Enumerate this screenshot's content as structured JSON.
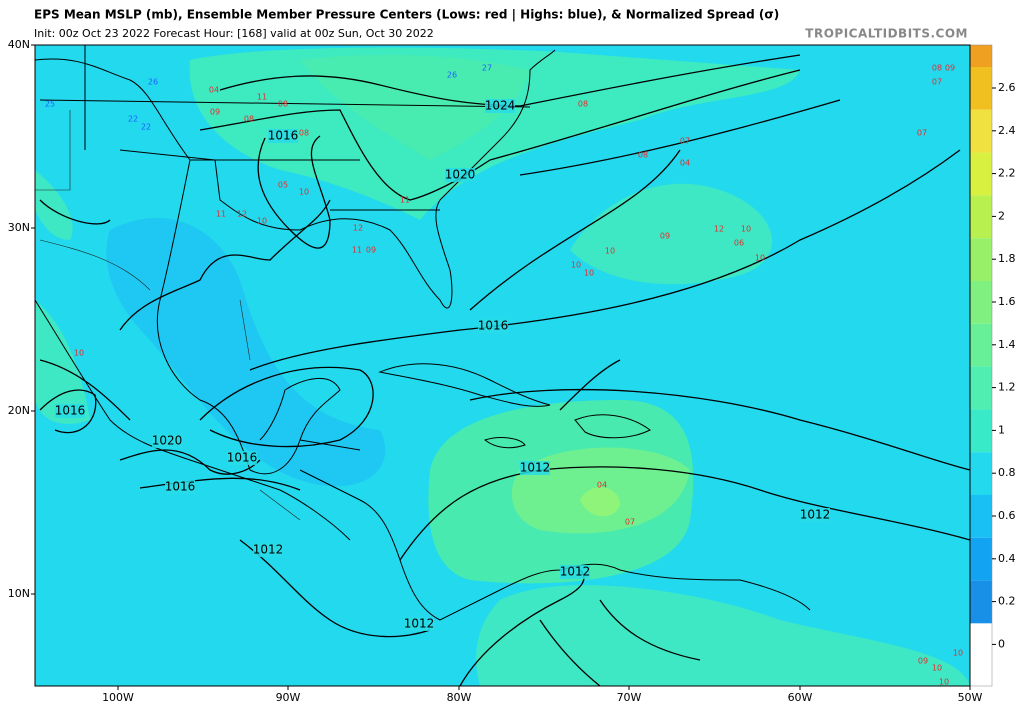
{
  "header": {
    "title": "EPS Mean MSLP (mb), Ensemble Member Pressure Centers (Lows: red | Highs: blue), & Normalized Spread (σ)",
    "init": "Init: 00z Oct 23 2022   Forecast Hour: [168]   valid at 00z Sun, Oct 30 2022",
    "site": "TROPICALTIDBITS.COM"
  },
  "map": {
    "lat_labels": [
      "40N",
      "30N",
      "20N",
      "10N"
    ],
    "lon_labels": [
      "100W",
      "90W",
      "80W",
      "70W",
      "60W",
      "50W"
    ],
    "isobar_labels": [
      "1024",
      "1016",
      "1020",
      "1016",
      "1016",
      "1020",
      "1016",
      "1016",
      "1012",
      "1012",
      "1012",
      "1012",
      "1012"
    ],
    "lows": [
      "04",
      "11",
      "08",
      "09",
      "08",
      "08",
      "05",
      "10",
      "11",
      "12",
      "10",
      "12",
      "11",
      "09",
      "11",
      "08",
      "07",
      "08",
      "04",
      "09",
      "12",
      "10",
      "06",
      "10",
      "10",
      "10",
      "10",
      "07",
      "04",
      "07",
      "08",
      "09",
      "07",
      "10",
      "09",
      "10",
      "10",
      "10"
    ],
    "highs": [
      "26",
      "22",
      "22",
      "25",
      "27",
      "26"
    ]
  },
  "colorbar": {
    "labels": [
      2.6,
      2.4,
      2.2,
      2,
      1.8,
      1.6,
      1.4,
      1.2,
      1,
      0.8,
      0.6,
      0.4,
      0.2,
      0
    ],
    "colors": [
      "#f0a020",
      "#f0c020",
      "#f0e040",
      "#d8f040",
      "#b8f050",
      "#98f068",
      "#80f080",
      "#68f098",
      "#50eeb0",
      "#38eac8",
      "#22d9ee",
      "#18c0f4",
      "#12a4f2",
      "#1890e8",
      "#ffffff"
    ]
  }
}
